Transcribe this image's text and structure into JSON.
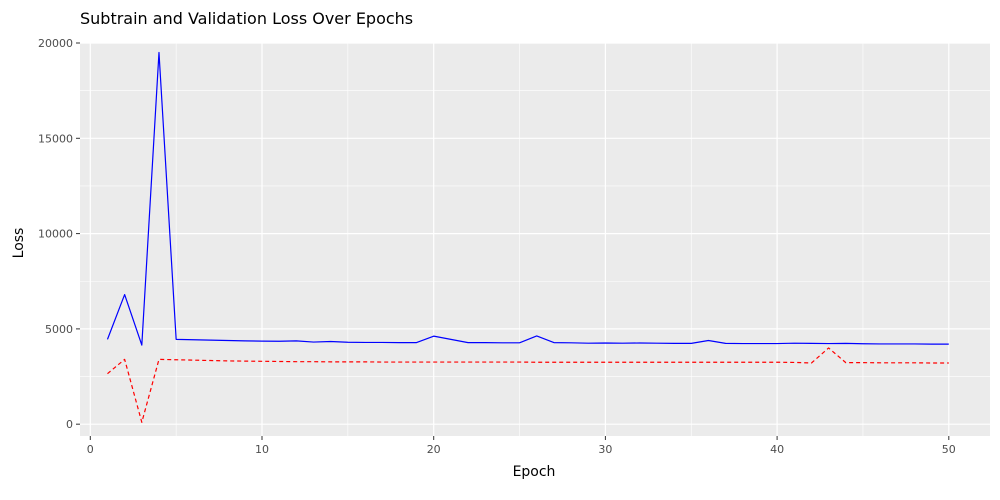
{
  "chart_data": {
    "type": "line",
    "title": "Subtrain and Validation Loss Over Epochs",
    "xlabel": "Epoch",
    "ylabel": "Loss",
    "xlim": [
      -0.6,
      52.4
    ],
    "ylim": [
      -620,
      20000
    ],
    "x_ticks": [
      0,
      10,
      20,
      30,
      40,
      50
    ],
    "y_ticks": [
      0,
      5000,
      10000,
      15000,
      20000
    ],
    "grid": true,
    "panel_background": "#ebebeb",
    "grid_color": "#ffffff",
    "x": [
      1,
      2,
      3,
      4,
      5,
      6,
      7,
      8,
      9,
      10,
      11,
      12,
      13,
      14,
      15,
      16,
      17,
      18,
      19,
      20,
      21,
      22,
      23,
      24,
      25,
      26,
      27,
      28,
      29,
      30,
      31,
      32,
      33,
      34,
      35,
      36,
      37,
      38,
      39,
      40,
      41,
      42,
      43,
      44,
      45,
      46,
      47,
      48,
      49,
      50
    ],
    "series": [
      {
        "color": "#0000ff",
        "line_style": "solid",
        "values": [
          4450,
          6800,
          4150,
          19500,
          4450,
          4430,
          4410,
          4390,
          4370,
          4360,
          4350,
          4370,
          4310,
          4340,
          4300,
          4290,
          4290,
          4280,
          4280,
          4620,
          4450,
          4280,
          4280,
          4270,
          4270,
          4630,
          4280,
          4270,
          4250,
          4260,
          4250,
          4260,
          4250,
          4240,
          4240,
          4390,
          4240,
          4230,
          4230,
          4230,
          4250,
          4240,
          4230,
          4240,
          4220,
          4210,
          4210,
          4210,
          4200,
          4200
        ]
      },
      {
        "color": "#ff0000",
        "line_style": "dashed",
        "values": [
          2650,
          3400,
          100,
          3400,
          3380,
          3360,
          3340,
          3320,
          3310,
          3300,
          3290,
          3280,
          3280,
          3270,
          3270,
          3270,
          3260,
          3260,
          3260,
          3260,
          3260,
          3260,
          3260,
          3260,
          3260,
          3250,
          3250,
          3250,
          3250,
          3250,
          3250,
          3250,
          3250,
          3250,
          3250,
          3250,
          3250,
          3250,
          3250,
          3250,
          3240,
          3210,
          4000,
          3230,
          3230,
          3220,
          3220,
          3220,
          3210,
          3210
        ]
      }
    ]
  }
}
